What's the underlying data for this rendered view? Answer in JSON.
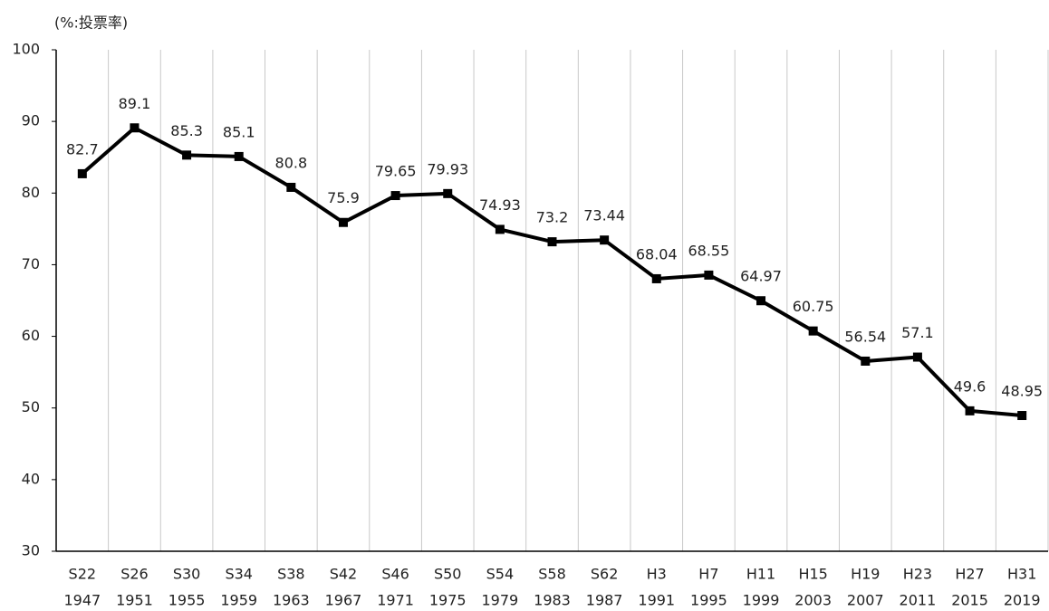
{
  "chart_data": {
    "type": "line",
    "y_label": "(%:投票率)",
    "categories": [
      [
        "S22",
        "1947"
      ],
      [
        "S26",
        "1951"
      ],
      [
        "S30",
        "1955"
      ],
      [
        "S34",
        "1959"
      ],
      [
        "S38",
        "1963"
      ],
      [
        "S42",
        "1967"
      ],
      [
        "S46",
        "1971"
      ],
      [
        "S50",
        "1975"
      ],
      [
        "S54",
        "1979"
      ],
      [
        "S58",
        "1983"
      ],
      [
        "S62",
        "1987"
      ],
      [
        "H3",
        "1991"
      ],
      [
        "H7",
        "1995"
      ],
      [
        "H11",
        "1999"
      ],
      [
        "H15",
        "2003"
      ],
      [
        "H19",
        "2007"
      ],
      [
        "H23",
        "2011"
      ],
      [
        "H27",
        "2015"
      ],
      [
        "H31",
        "2019"
      ]
    ],
    "values": [
      82.7,
      89.1,
      85.3,
      85.1,
      80.8,
      75.9,
      79.65,
      79.93,
      74.93,
      73.2,
      73.44,
      68.04,
      68.55,
      64.97,
      60.75,
      56.54,
      57.1,
      49.6,
      48.95
    ],
    "color": "#000000",
    "ylim": [
      30,
      100
    ],
    "yticks": [
      30,
      40,
      50,
      60,
      70,
      80,
      90,
      100
    ],
    "grid": true
  }
}
